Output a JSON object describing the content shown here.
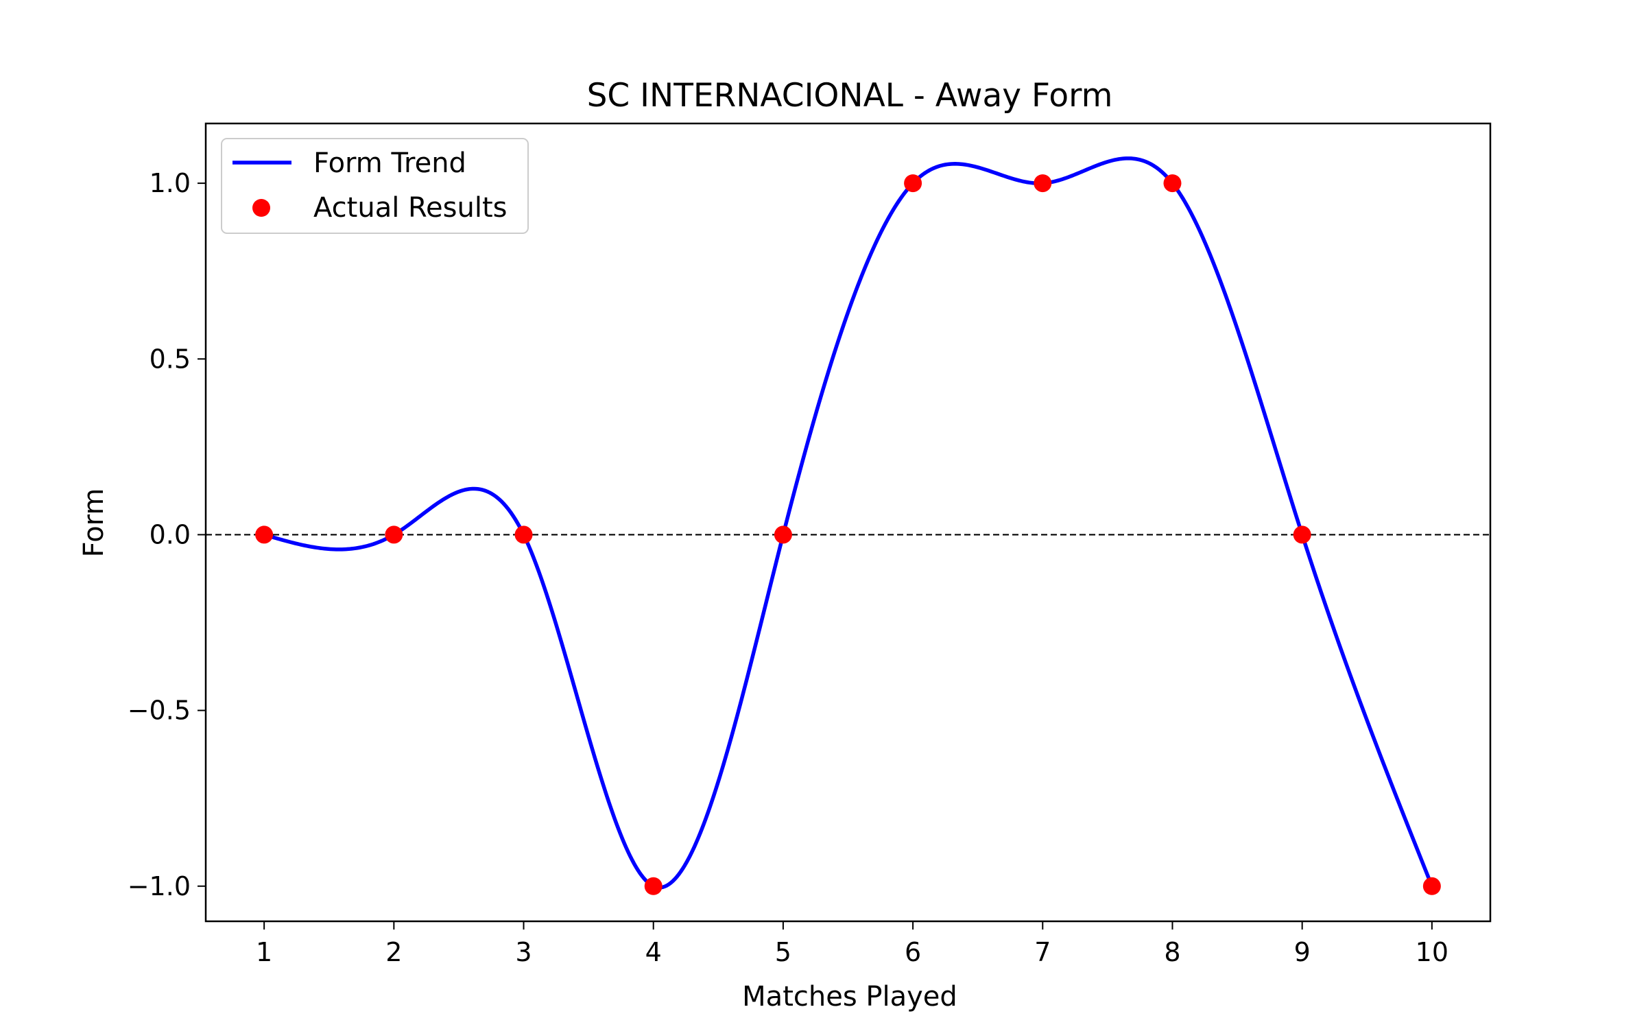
{
  "chart_data": {
    "type": "line",
    "title": "SC INTERNACIONAL - Away Form",
    "xlabel": "Matches Played",
    "ylabel": "Form",
    "x": [
      1,
      2,
      3,
      4,
      5,
      6,
      7,
      8,
      9,
      10
    ],
    "xticks": [
      "1",
      "2",
      "3",
      "4",
      "5",
      "6",
      "7",
      "8",
      "9",
      "10"
    ],
    "yticks": [
      {
        "value": -1.0,
        "label": "−1.0"
      },
      {
        "value": -0.5,
        "label": "−0.5"
      },
      {
        "value": 0.0,
        "label": "0.0"
      },
      {
        "value": 0.5,
        "label": "0.5"
      },
      {
        "value": 1.0,
        "label": "1.0"
      }
    ],
    "xlim": [
      0.55,
      10.45
    ],
    "ylim": [
      -1.1,
      1.17
    ],
    "grid": false,
    "legend_position": "top-left",
    "reference_line": {
      "y": 0.0,
      "style": "dashed",
      "color": "#000000"
    },
    "series": [
      {
        "name": "Form Trend",
        "kind": "line",
        "interpolation": "smooth spline through actual results",
        "color": "#0000ff",
        "values": [
          0,
          0,
          0,
          -1,
          0,
          1,
          1,
          1,
          0,
          -1
        ]
      },
      {
        "name": "Actual Results",
        "kind": "scatter",
        "color": "#ff0000",
        "values": [
          0,
          0,
          0,
          -1,
          0,
          1,
          1,
          1,
          0,
          -1
        ]
      }
    ]
  }
}
